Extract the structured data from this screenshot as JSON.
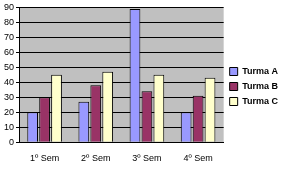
{
  "chart_data": {
    "type": "bar",
    "categories": [
      "1º Sem",
      "2º Sem",
      "3º Sem",
      "4º Sem"
    ],
    "series": [
      {
        "name": "Turma A",
        "color": "#9999ff",
        "values": [
          20,
          27,
          89,
          20
        ]
      },
      {
        "name": "Turma B",
        "color": "#993366",
        "values": [
          30,
          38,
          34,
          31
        ]
      },
      {
        "name": "Turma C",
        "color": "#ffffcc",
        "values": [
          45,
          47,
          45,
          43
        ]
      }
    ],
    "ylim": [
      0,
      90
    ],
    "yticks": [
      0,
      10,
      20,
      30,
      40,
      50,
      60,
      70,
      80,
      90
    ],
    "grid": true,
    "legend": "right"
  }
}
